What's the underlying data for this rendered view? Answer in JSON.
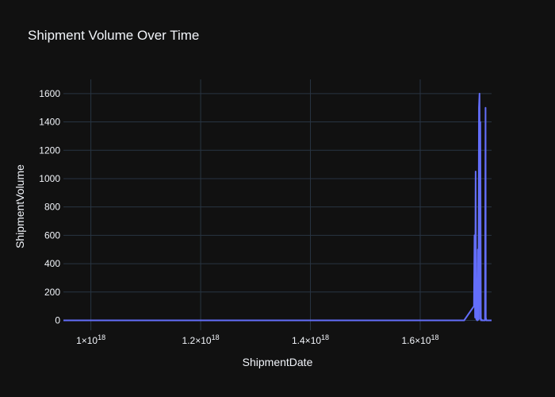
{
  "chart_data": {
    "type": "line",
    "title": "Shipment Volume Over Time",
    "xlabel": "ShipmentDate",
    "ylabel": "ShipmentVolume",
    "xlim": [
      9.5e+17,
      1.73e+18
    ],
    "ylim": [
      -70,
      1700
    ],
    "x_ticks": [
      {
        "value": 1e+18,
        "mantissa": "1",
        "exp": "18"
      },
      {
        "value": 1.2e+18,
        "mantissa": "1.2",
        "exp": "18"
      },
      {
        "value": 1.4e+18,
        "mantissa": "1.4",
        "exp": "18"
      },
      {
        "value": 1.6e+18,
        "mantissa": "1.6",
        "exp": "18"
      }
    ],
    "y_ticks": [
      0,
      200,
      400,
      600,
      800,
      1000,
      1200,
      1400,
      1600
    ],
    "grid": true,
    "colors": {
      "line": "#636efa",
      "background": "#111111",
      "grid": "#283442"
    },
    "series": [
      {
        "x": [
          9.5e+17,
          1.5e+18,
          1.68e+18,
          1.698e+18,
          1.699e+18,
          1.7e+18,
          1.7005e+18,
          1.701e+18,
          1.702e+18,
          1.704e+18,
          1.705e+18,
          1.706e+18,
          1.707e+18,
          1.708e+18,
          1.709e+18,
          1.7095e+18,
          1.7105e+18,
          1.711e+18,
          1.712e+18,
          1.713e+18,
          1.718e+18,
          1.719e+18,
          1.7195e+18,
          1.7205e+18,
          1.722e+18,
          1.73e+18
        ],
        "y": [
          0,
          0,
          0,
          100,
          600,
          20,
          600,
          1050,
          10,
          0,
          500,
          5,
          1500,
          1600,
          10,
          1400,
          20,
          0,
          5,
          0,
          0,
          1500,
          20,
          0,
          0,
          0
        ]
      }
    ]
  }
}
